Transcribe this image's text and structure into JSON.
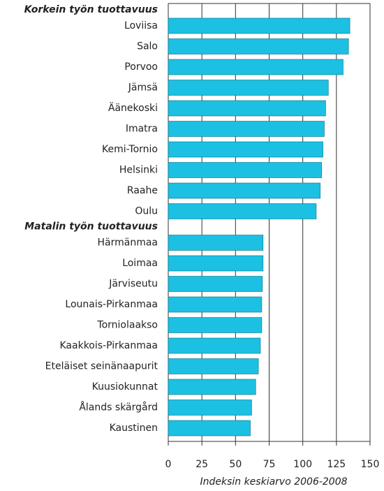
{
  "chart_data": {
    "type": "bar",
    "color": "#1cc0e3",
    "groups": [
      {
        "name": "Korkein työn tuottavuus",
        "categories": [
          "Loviisa",
          "Salo",
          "Porvoo",
          "Jämsä",
          "Äänekoski",
          "Imatra",
          "Kemi-Tornio",
          "Helsinki",
          "Raahe",
          "Oulu"
        ],
        "values": [
          135,
          134,
          130,
          119,
          117,
          116,
          115,
          114,
          113,
          110
        ]
      },
      {
        "name": "Matalin työn tuottavuus",
        "categories": [
          "Härmänmaa",
          "Loimaa",
          "Järviseutu",
          "Lounais-Pirkanmaa",
          "Torniolaakso",
          "Kaakkois-Pirkanmaa",
          "Eteläiset seinänaapurit",
          "Kuusiokunnat",
          "Ålands skärgård",
          "Kaustinen"
        ],
        "values": [
          70.5,
          70.5,
          70,
          69.5,
          69.5,
          68.5,
          67,
          65,
          62,
          61
        ]
      }
    ],
    "xlim": [
      0,
      150
    ],
    "xticks": [
      0,
      25,
      50,
      75,
      100,
      125,
      150
    ],
    "grid": true,
    "x_label": "Indeksin keskiarvo 2006-2008"
  }
}
